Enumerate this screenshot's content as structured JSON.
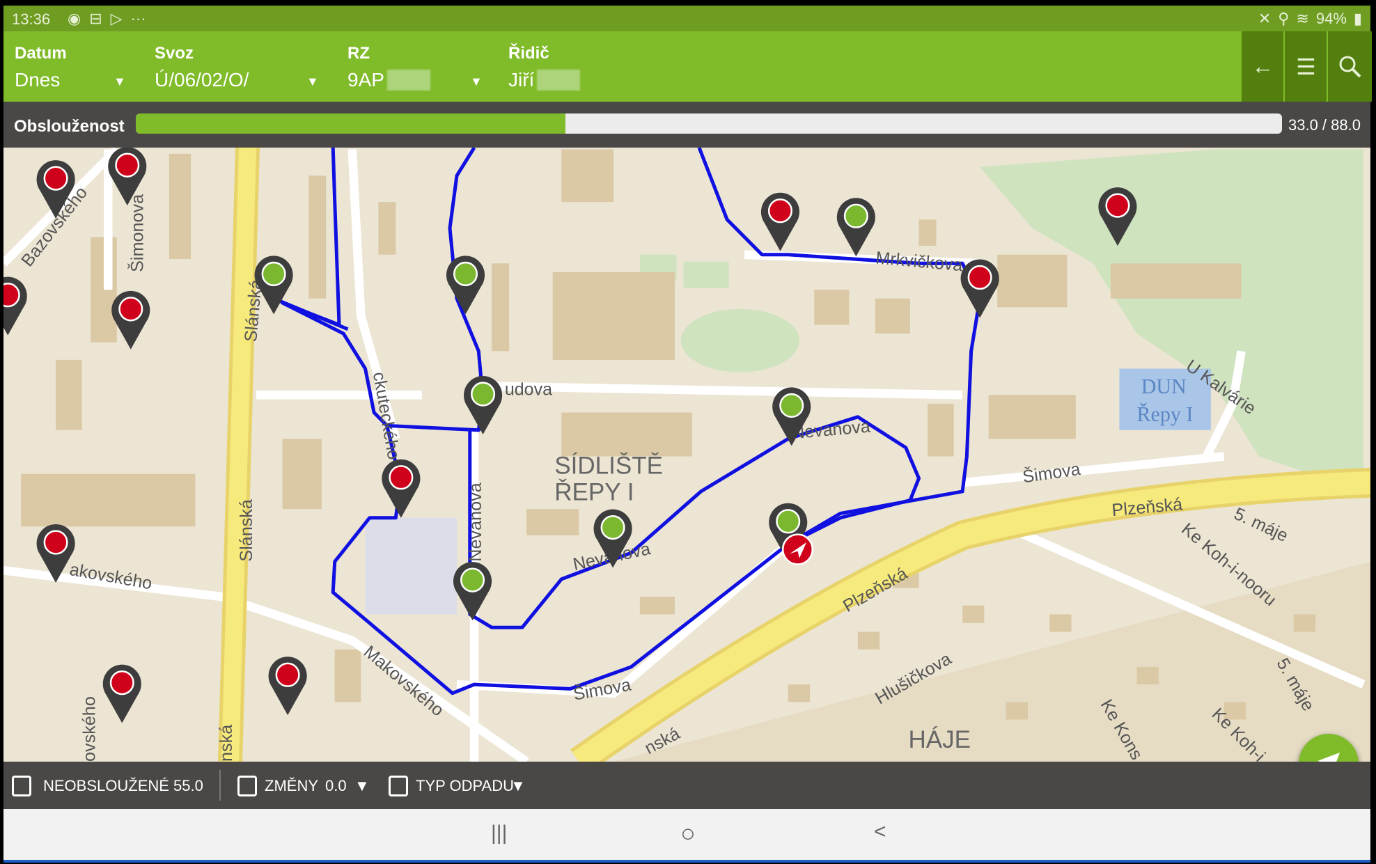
{
  "status_bar": {
    "time": "13:36",
    "left_icons": [
      "eye-icon",
      "remote-icon",
      "play-store-icon",
      "more-icon"
    ],
    "battery": "94%",
    "right_icons": [
      "mute-icon",
      "location-icon",
      "wifi-icon",
      "battery-icon"
    ]
  },
  "header": {
    "fields": [
      {
        "label": "Datum",
        "value": "Dnes"
      },
      {
        "label": "Svoz",
        "value": "Ú/06/02/O/"
      },
      {
        "label": "RZ",
        "value": "9AP"
      },
      {
        "label": "Řidič",
        "value": "Jiří"
      }
    ],
    "buttons": [
      "back-arrow-icon",
      "list-icon",
      "search-icon"
    ]
  },
  "progress": {
    "label": "Obslouženost",
    "done": 33.0,
    "total": 88.0,
    "text": "33.0 / 88.0"
  },
  "map": {
    "labels": {
      "bazovskeho": "Bazovského",
      "simonova": "Šimonova",
      "slanska1": "Slánská",
      "slanska2": "Slánská",
      "slanska3": "nská",
      "mrkvickova": "Mrkvičkova",
      "u_kalvarie": "U Kalvárie",
      "dun": "DUN",
      "repy": "Řepy I",
      "bendova": "udova",
      "sidliste1": "SÍDLIŠTĚ",
      "sidliste2": "ŘEPY I",
      "nevanova1": "Nevanova",
      "nevanova2": "Nevanova",
      "nevanova3": "Nevanova",
      "simova1": "Šimova",
      "simova2": "Šimova",
      "plzenska1": "Plzeňská",
      "plzenska2": "Plzeňská",
      "plzenska3": "nská",
      "maje1": "5. máje",
      "maje2": "5. máje",
      "kohinoor1": "Ke Koh-i-nooru",
      "kohinoor2": "Ke Koh-i",
      "kons": "Ke Kons",
      "hlusickova": "Hlušičkova",
      "haje": "HÁJE",
      "makovskeho1": "akovského",
      "makovskeho2": "Makovského",
      "makovskeho3": "ovského",
      "skuteckeho": "ckuteckého"
    },
    "marker_colors": {
      "unserved": "#d0021b",
      "served": "#7cb82f",
      "pin": "#3d3d3d",
      "route": "#1010e0"
    },
    "markers": [
      "unserved",
      "unserved",
      "unserved",
      "unserved",
      "unserved",
      "unserved",
      "unserved",
      "unserved",
      "unserved",
      "unserved",
      "unserved",
      "served",
      "served",
      "served",
      "served",
      "served",
      "served",
      "served",
      "served"
    ]
  },
  "bottom_bar": {
    "unserved_label": "NEOBSLOUŽENÉ",
    "unserved_value": "55.0",
    "changes_label": "ZMĚNY",
    "changes_value": "0.0",
    "waste_type_label": "TYP ODPADU"
  },
  "nav_bar": {
    "recent": "|||",
    "home": "○",
    "back": "<"
  }
}
